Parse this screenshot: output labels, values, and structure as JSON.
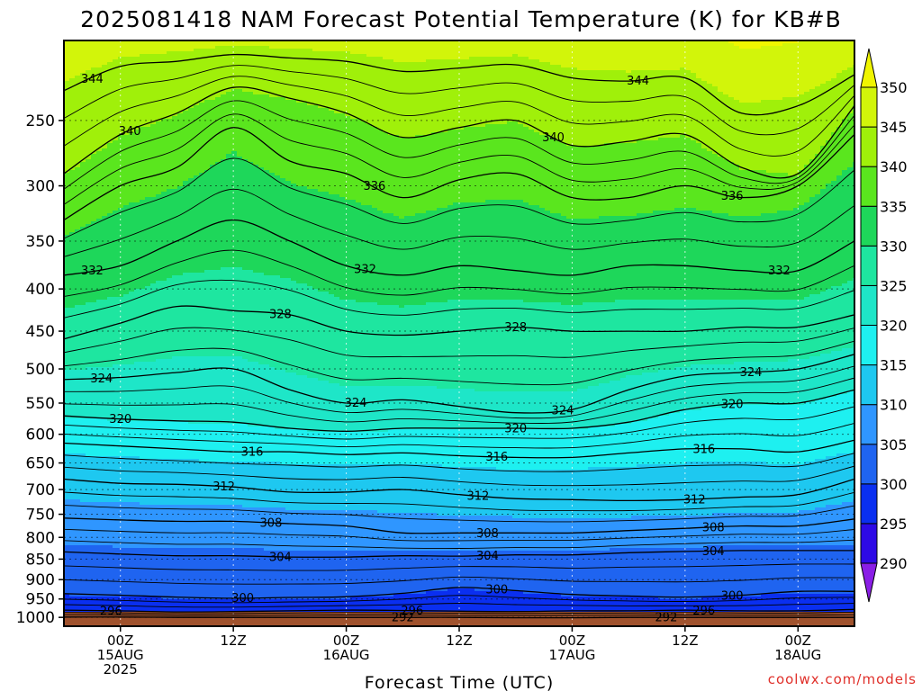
{
  "chart_data": {
    "type": "contour",
    "title": "2025081418 NAM Forecast Potential Temperature (K) for KB#B",
    "xlabel": "Forecast Time (UTC)",
    "ylabel": "",
    "credit": "coolwx.com/models",
    "x_hours_from_init": [
      0,
      84
    ],
    "x_ticks": [
      {
        "hour": 6,
        "lines": [
          "00Z",
          "15AUG",
          "2025"
        ]
      },
      {
        "hour": 18,
        "lines": [
          "12Z"
        ]
      },
      {
        "hour": 30,
        "lines": [
          "00Z",
          "16AUG"
        ]
      },
      {
        "hour": 42,
        "lines": [
          "12Z"
        ]
      },
      {
        "hour": 54,
        "lines": [
          "00Z",
          "17AUG"
        ]
      },
      {
        "hour": 66,
        "lines": [
          "12Z"
        ]
      },
      {
        "hour": 78,
        "lines": [
          "00Z",
          "18AUG"
        ]
      }
    ],
    "y_scale": "log",
    "y_range_hpa": [
      1025,
      200
    ],
    "y_ticks": [
      250,
      300,
      350,
      400,
      450,
      500,
      550,
      600,
      650,
      700,
      750,
      800,
      850,
      900,
      950,
      1000
    ],
    "colorbar_levels": [
      290,
      295,
      300,
      305,
      310,
      315,
      320,
      325,
      330,
      335,
      340,
      345,
      350
    ],
    "colorbar_colors": [
      "#8a1ee6",
      "#2d0ae6",
      "#0a2ff0",
      "#1f64f0",
      "#2f96ff",
      "#1ec8f0",
      "#1ef0f0",
      "#1ee6c8",
      "#1ee6a0",
      "#1ed75a",
      "#5ae61e",
      "#a0f00a",
      "#d2f50a",
      "#f0f500"
    ],
    "ground_color": "#a0522d",
    "series": [
      {
        "value": 292,
        "p": [
          999,
          999,
          1000,
          1000,
          1000,
          1000,
          1000,
          1000,
          1001,
          1001,
          1000,
          1000,
          1000,
          1000,
          1000
        ]
      },
      {
        "value": 296,
        "p": [
          980,
          982,
          985,
          984,
          982,
          980,
          981,
          983,
          984,
          982,
          982,
          980,
          982,
          982,
          978
        ]
      },
      {
        "value": 300,
        "p": [
          936,
          940,
          945,
          948,
          946,
          944,
          935,
          920,
          928,
          938,
          942,
          945,
          940,
          930,
          930
        ]
      },
      {
        "value": 304,
        "p": [
          833,
          838,
          842,
          842,
          845,
          845,
          842,
          843,
          840,
          840,
          835,
          832,
          830,
          830,
          830
        ]
      },
      {
        "value": 308,
        "p": [
          758,
          762,
          765,
          765,
          770,
          775,
          790,
          790,
          790,
          790,
          785,
          780,
          775,
          775,
          760
        ]
      },
      {
        "value": 312,
        "p": [
          680,
          688,
          690,
          695,
          705,
          705,
          700,
          710,
          718,
          720,
          722,
          720,
          715,
          710,
          680
        ]
      },
      {
        "value": 316,
        "p": [
          615,
          620,
          625,
          630,
          630,
          635,
          632,
          637,
          640,
          640,
          632,
          625,
          625,
          630,
          610
        ]
      },
      {
        "value": 320,
        "p": [
          570,
          575,
          578,
          580,
          590,
          595,
          590,
          590,
          590,
          590,
          580,
          560,
          550,
          550,
          530
        ]
      },
      {
        "value": 324,
        "p": [
          515,
          512,
          505,
          500,
          530,
          550,
          545,
          555,
          565,
          560,
          530,
          510,
          505,
          500,
          480
        ]
      },
      {
        "value": 328,
        "p": [
          460,
          440,
          420,
          425,
          430,
          450,
          455,
          450,
          445,
          450,
          450,
          450,
          445,
          445,
          430
        ]
      },
      {
        "value": 332,
        "p": [
          385,
          375,
          350,
          330,
          350,
          375,
          385,
          375,
          380,
          385,
          375,
          375,
          380,
          380,
          350
        ]
      },
      {
        "value": 336,
        "p": [
          330,
          300,
          285,
          255,
          280,
          290,
          310,
          295,
          290,
          310,
          310,
          300,
          310,
          300,
          260
        ]
      },
      {
        "value": 340,
        "p": [
          290,
          260,
          245,
          228,
          235,
          245,
          262,
          255,
          250,
          268,
          265,
          260,
          285,
          290,
          240
        ]
      },
      {
        "value": 344,
        "p": [
          230,
          215,
          212,
          208,
          210,
          212,
          218,
          216,
          214,
          222,
          224,
          222,
          245,
          240,
          220
        ]
      }
    ],
    "contour_labels": [
      {
        "text": "344",
        "at_series": 344,
        "hour": 3
      },
      {
        "text": "344",
        "at_series": 344,
        "hour": 61
      },
      {
        "text": "340",
        "at_series": 340,
        "hour": 7
      },
      {
        "text": "340",
        "at_series": 340,
        "hour": 52
      },
      {
        "text": "336",
        "at_series": 336,
        "hour": 33
      },
      {
        "text": "336",
        "at_series": 336,
        "hour": 71
      },
      {
        "text": "332",
        "at_series": 332,
        "hour": 3
      },
      {
        "text": "332",
        "at_series": 332,
        "hour": 32
      },
      {
        "text": "332",
        "at_series": 332,
        "hour": 76
      },
      {
        "text": "328",
        "at_series": 328,
        "hour": 23
      },
      {
        "text": "328",
        "at_series": 328,
        "hour": 48
      },
      {
        "text": "324",
        "at_series": 324,
        "hour": 4
      },
      {
        "text": "324",
        "at_series": 324,
        "hour": 31
      },
      {
        "text": "324",
        "at_series": 324,
        "hour": 53
      },
      {
        "text": "324",
        "at_series": 324,
        "hour": 73
      },
      {
        "text": "320",
        "at_series": 320,
        "hour": 6
      },
      {
        "text": "320",
        "at_series": 320,
        "hour": 48
      },
      {
        "text": "320",
        "at_series": 320,
        "hour": 71
      },
      {
        "text": "316",
        "at_series": 316,
        "hour": 20
      },
      {
        "text": "316",
        "at_series": 316,
        "hour": 46
      },
      {
        "text": "316",
        "at_series": 316,
        "hour": 68
      },
      {
        "text": "312",
        "at_series": 312,
        "hour": 17
      },
      {
        "text": "312",
        "at_series": 312,
        "hour": 44
      },
      {
        "text": "312",
        "at_series": 312,
        "hour": 67
      },
      {
        "text": "308",
        "at_series": 308,
        "hour": 22
      },
      {
        "text": "308",
        "at_series": 308,
        "hour": 45
      },
      {
        "text": "308",
        "at_series": 308,
        "hour": 69
      },
      {
        "text": "304",
        "at_series": 304,
        "hour": 23
      },
      {
        "text": "304",
        "at_series": 304,
        "hour": 45
      },
      {
        "text": "304",
        "at_series": 304,
        "hour": 69
      },
      {
        "text": "300",
        "at_series": 300,
        "hour": 19
      },
      {
        "text": "300",
        "at_series": 300,
        "hour": 46
      },
      {
        "text": "300",
        "at_series": 300,
        "hour": 71
      },
      {
        "text": "296",
        "at_series": 296,
        "hour": 5
      },
      {
        "text": "296",
        "at_series": 296,
        "hour": 37
      },
      {
        "text": "296",
        "at_series": 296,
        "hour": 68
      },
      {
        "text": "292",
        "at_series": 292,
        "hour": 36
      },
      {
        "text": "292",
        "at_series": 292,
        "hour": 64
      }
    ]
  }
}
